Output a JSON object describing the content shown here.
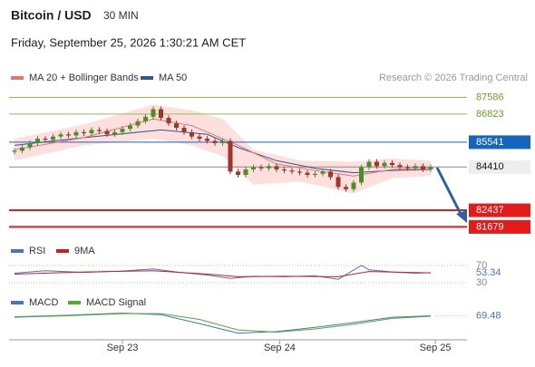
{
  "chart_data": {
    "type": "candlestick",
    "title": "Bitcoin / USD",
    "interval": "30 MIN",
    "subtitle": "Friday, September 25, 2026 1:30:21 AM CET",
    "source": "Research © 2026 Trading Central",
    "up_color": "#4c8c2b",
    "down_color": "#a0362a",
    "xlim": [
      0,
      58
    ],
    "xticks": [
      {
        "value": 15,
        "label": "Sep 23"
      },
      {
        "value": 35.4,
        "label": "Sep 24"
      },
      {
        "value": 55.6,
        "label": "Sep 25"
      }
    ],
    "ylim": [
      81200,
      88100
    ],
    "candles": [
      [
        85100,
        85270,
        84980,
        85150
      ],
      [
        85150,
        85420,
        85030,
        85300
      ],
      [
        85300,
        85620,
        85180,
        85500
      ],
      [
        85500,
        85820,
        85380,
        85700
      ],
      [
        85700,
        85820,
        85530,
        85650
      ],
      [
        85650,
        85920,
        85530,
        85800
      ],
      [
        85800,
        86020,
        85680,
        85900
      ],
      [
        85900,
        86020,
        85730,
        85850
      ],
      [
        85850,
        86120,
        85730,
        86000
      ],
      [
        86000,
        86120,
        85830,
        85950
      ],
      [
        85950,
        86220,
        85830,
        86100
      ],
      [
        86100,
        86220,
        85930,
        86050
      ],
      [
        86050,
        86170,
        85780,
        85900
      ],
      [
        85900,
        86120,
        85780,
        86000
      ],
      [
        86000,
        86270,
        85880,
        86150
      ],
      [
        86150,
        86420,
        86030,
        86300
      ],
      [
        86300,
        86620,
        86180,
        86500
      ],
      [
        86500,
        86820,
        86380,
        86700
      ],
      [
        86700,
        87170,
        86580,
        87050
      ],
      [
        87050,
        87170,
        86530,
        86650
      ],
      [
        86650,
        86770,
        86280,
        86400
      ],
      [
        86400,
        86520,
        86080,
        86200
      ],
      [
        86200,
        86320,
        85880,
        86000
      ],
      [
        86000,
        86120,
        85680,
        85800
      ],
      [
        85800,
        85920,
        85580,
        85700
      ],
      [
        85700,
        85820,
        85480,
        85600
      ],
      [
        85600,
        85720,
        85380,
        85500
      ],
      [
        85500,
        85720,
        85380,
        85600
      ],
      [
        85600,
        85720,
        84080,
        84200
      ],
      [
        84200,
        84320,
        83930,
        84050
      ],
      [
        84050,
        84420,
        83930,
        84300
      ],
      [
        84300,
        84520,
        84180,
        84400
      ],
      [
        84400,
        84520,
        84230,
        84350
      ],
      [
        84350,
        84570,
        84230,
        84450
      ],
      [
        84450,
        84570,
        84180,
        84300
      ],
      [
        84300,
        84420,
        84130,
        84250
      ],
      [
        84250,
        84370,
        84080,
        84200
      ],
      [
        84200,
        84320,
        84030,
        84150
      ],
      [
        84150,
        84270,
        83930,
        84050
      ],
      [
        84050,
        84220,
        83930,
        84100
      ],
      [
        84100,
        84320,
        83980,
        84200
      ],
      [
        84200,
        84320,
        83830,
        83950
      ],
      [
        83950,
        84070,
        83380,
        83500
      ],
      [
        83500,
        83620,
        83280,
        83400
      ],
      [
        83400,
        83820,
        83280,
        83700
      ],
      [
        83700,
        84520,
        83580,
        84400
      ],
      [
        84400,
        84770,
        84280,
        84650
      ],
      [
        84650,
        84770,
        84330,
        84450
      ],
      [
        84450,
        84720,
        84330,
        84600
      ],
      [
        84600,
        84720,
        84380,
        84500
      ],
      [
        84500,
        84620,
        84280,
        84400
      ],
      [
        84400,
        84520,
        84230,
        84350
      ],
      [
        84350,
        84570,
        84230,
        84450
      ],
      [
        84450,
        84570,
        84180,
        84300
      ],
      [
        84300,
        84530,
        84180,
        84410
      ]
    ],
    "ma20": {
      "name": "MA 20 + Bollinger Bands",
      "color": "#e8736f",
      "x": [
        1,
        10,
        19,
        24,
        30,
        35,
        40,
        45,
        50,
        55
      ],
      "values": [
        85200,
        85750,
        86600,
        86300,
        85400,
        84550,
        84250,
        84000,
        84300,
        84380
      ]
    },
    "bollinger": {
      "color": "#fde0dd",
      "x": [
        1,
        10,
        19,
        24,
        28,
        32,
        38,
        45,
        50,
        55
      ],
      "upper": [
        85700,
        86350,
        87250,
        87000,
        86600,
        85200,
        84700,
        84650,
        84800,
        84700
      ],
      "lower": [
        84700,
        85400,
        85700,
        85400,
        84900,
        83600,
        83750,
        83200,
        83900,
        84000
      ]
    },
    "ma50": {
      "name": "MA 50",
      "color": "#2f5597",
      "x": [
        1,
        10,
        20,
        26,
        30,
        35,
        40,
        45,
        50,
        55
      ],
      "values": [
        85400,
        85750,
        86100,
        85900,
        85300,
        84700,
        84350,
        84150,
        84250,
        84300
      ]
    },
    "levels": [
      {
        "value": 87586,
        "color": "#8bc34a",
        "boxed": false
      },
      {
        "value": 86823,
        "color": "#8bc34a",
        "boxed": false
      },
      {
        "value": 85541,
        "color": "#1565c0",
        "boxed": true
      },
      {
        "value": 84410,
        "color": "#eeeeee",
        "boxed": true
      },
      {
        "value": 82437,
        "color": "#e31b1b",
        "boxed": true
      },
      {
        "value": 81679,
        "color": "#e31b1b",
        "boxed": true
      }
    ],
    "rsi": {
      "ylim": [
        30,
        70
      ],
      "yticks": [
        70,
        30
      ],
      "series": [
        {
          "name": "RSI",
          "color": "#4a72c8",
          "x": [
            1,
            5,
            10,
            15,
            19,
            22,
            26,
            29,
            32,
            36,
            40,
            43,
            46,
            47,
            50,
            53,
            55
          ],
          "values": [
            52,
            58,
            54,
            57,
            62,
            55,
            48,
            40,
            45,
            44,
            46,
            38,
            70,
            60,
            55,
            52,
            53.34
          ]
        },
        {
          "name": "9MA",
          "color": "#d7191c",
          "x": [
            1,
            10,
            19,
            26,
            30,
            36,
            43,
            47,
            55
          ],
          "values": [
            50,
            55,
            58,
            50,
            44,
            45,
            44,
            56,
            53
          ]
        }
      ]
    },
    "macd": {
      "ylim": [
        -300,
        300
      ],
      "series": [
        {
          "name": "MACD",
          "color": "#4a72c8",
          "x": [
            1,
            8,
            15,
            20,
            25,
            30,
            35,
            40,
            45,
            50,
            55
          ],
          "values": [
            50,
            80,
            120,
            90,
            -80,
            -260,
            -230,
            -150,
            -60,
            40,
            69.48
          ]
        },
        {
          "name": "MACD Signal",
          "color": "#4caf24",
          "x": [
            1,
            8,
            15,
            20,
            25,
            30,
            35,
            40,
            45,
            50,
            55
          ],
          "values": [
            40,
            70,
            110,
            110,
            0,
            -200,
            -240,
            -180,
            -90,
            20,
            60
          ]
        }
      ]
    }
  }
}
